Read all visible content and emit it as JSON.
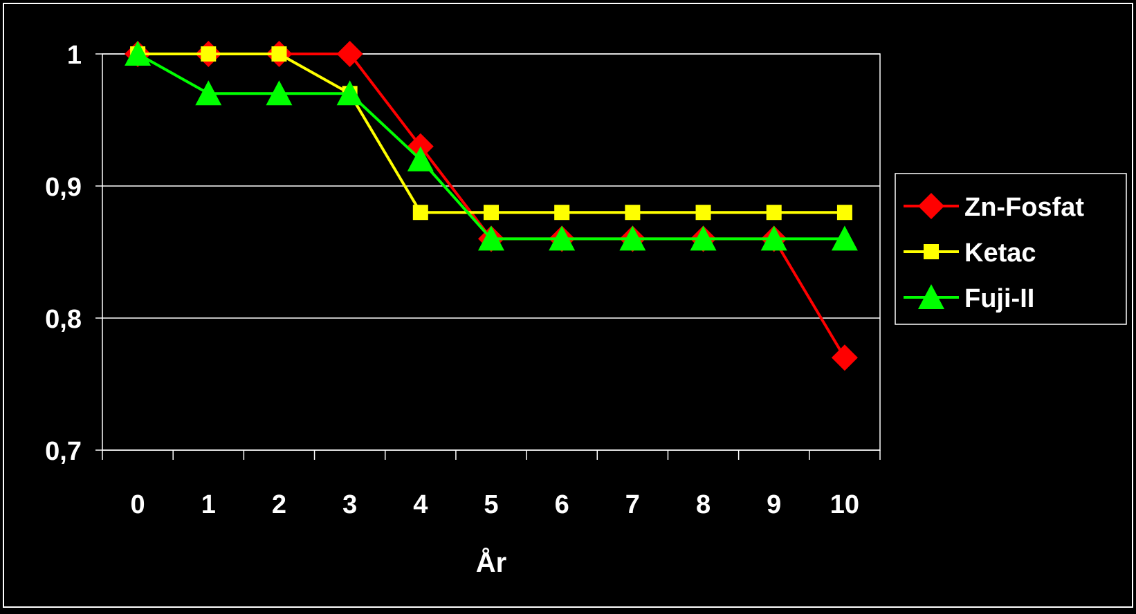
{
  "chart_data": {
    "type": "line",
    "title": "",
    "xlabel": "År",
    "ylabel": "",
    "categories": [
      "0",
      "1",
      "2",
      "3",
      "4",
      "5",
      "6",
      "7",
      "8",
      "9",
      "10"
    ],
    "ylim": [
      0.7,
      1.0
    ],
    "yticks": [
      {
        "value": 0.7,
        "label": "0,7"
      },
      {
        "value": 0.8,
        "label": "0,8"
      },
      {
        "value": 0.9,
        "label": "0,9"
      },
      {
        "value": 1.0,
        "label": "1"
      }
    ],
    "grid": "horizontal",
    "legend_position": "right",
    "series": [
      {
        "name": "Zn-Fosfat",
        "color": "#ff0000",
        "marker": "diamond",
        "values": [
          1.0,
          1.0,
          1.0,
          1.0,
          0.93,
          0.86,
          0.86,
          0.86,
          0.86,
          0.86,
          0.77
        ]
      },
      {
        "name": "Ketac",
        "color": "#ffff00",
        "marker": "square",
        "values": [
          1.0,
          1.0,
          1.0,
          0.97,
          0.88,
          0.88,
          0.88,
          0.88,
          0.88,
          0.88,
          0.88
        ]
      },
      {
        "name": "Fuji-II",
        "color": "#00ff00",
        "marker": "triangle",
        "values": [
          1.0,
          0.97,
          0.97,
          0.97,
          0.92,
          0.86,
          0.86,
          0.86,
          0.86,
          0.86,
          0.86
        ]
      }
    ]
  }
}
